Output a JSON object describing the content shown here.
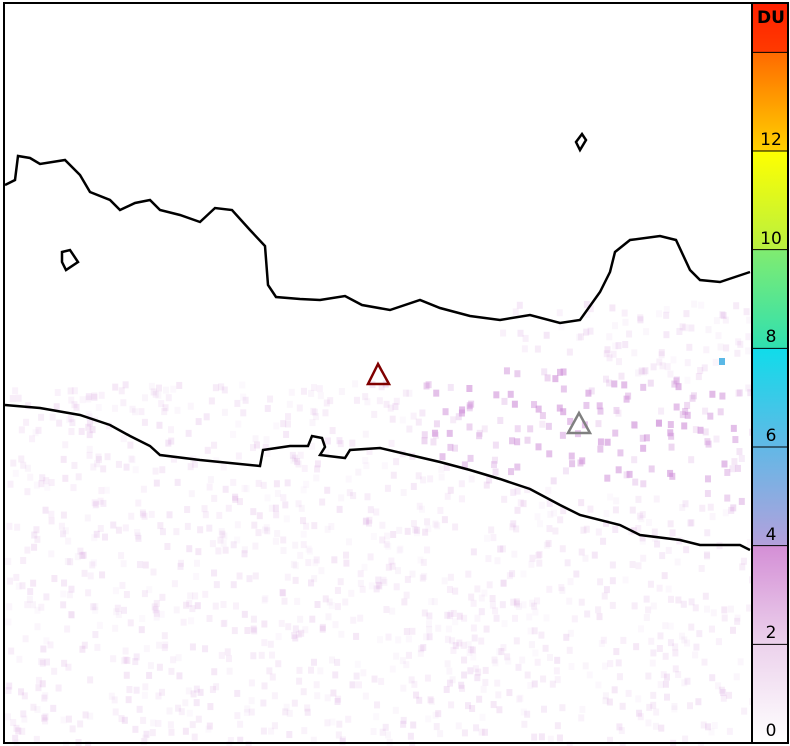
{
  "colorbar": {
    "unit": "DU",
    "tick_labels": [
      "0",
      "2",
      "4",
      "6",
      "8",
      "10",
      "12"
    ],
    "range": [
      0,
      15
    ],
    "colors": [
      "#ffffff",
      "#ecd2ec",
      "#d48fd6",
      "#a8a8e0",
      "#5ab8e6",
      "#10dcea",
      "#40e0a0",
      "#90ec60",
      "#f8ff00",
      "#ffb000",
      "#ff6a00",
      "#ff2a00"
    ]
  },
  "markers": [
    {
      "name": "volcano-marker-red",
      "color": "#800000"
    },
    {
      "name": "volcano-marker-gray",
      "color": "#808080"
    }
  ],
  "coastline_color": "#000000"
}
